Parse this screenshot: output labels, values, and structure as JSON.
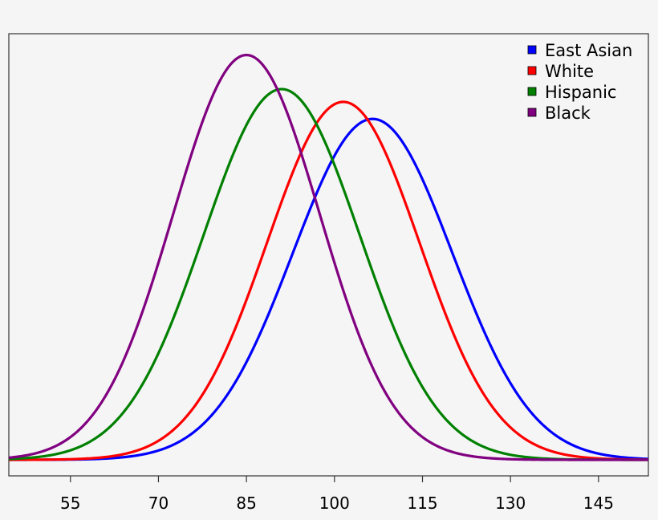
{
  "chart_data": {
    "type": "line",
    "title": "",
    "xlabel": "",
    "ylabel": "",
    "xlim": [
      44.5,
      153.5
    ],
    "ylim": [
      0,
      1
    ],
    "grid": false,
    "legend_placement": "top-right",
    "x_ticks": [
      "55",
      "70",
      "85",
      "100",
      "115",
      "130",
      "145"
    ],
    "series": [
      {
        "name": "East Asian",
        "color": "#0000ff",
        "mean": 106.5,
        "sd": 13.6,
        "peak": 0.8
      },
      {
        "name": "White",
        "color": "#ff0000",
        "mean": 101.5,
        "sd": 13.0,
        "peak": 0.84
      },
      {
        "name": "Hispanic",
        "color": "#008000",
        "mean": 91.0,
        "sd": 13.3,
        "peak": 0.87
      },
      {
        "name": "Black",
        "color": "#800080",
        "mean": 85.0,
        "sd": 12.5,
        "peak": 0.95
      }
    ]
  }
}
